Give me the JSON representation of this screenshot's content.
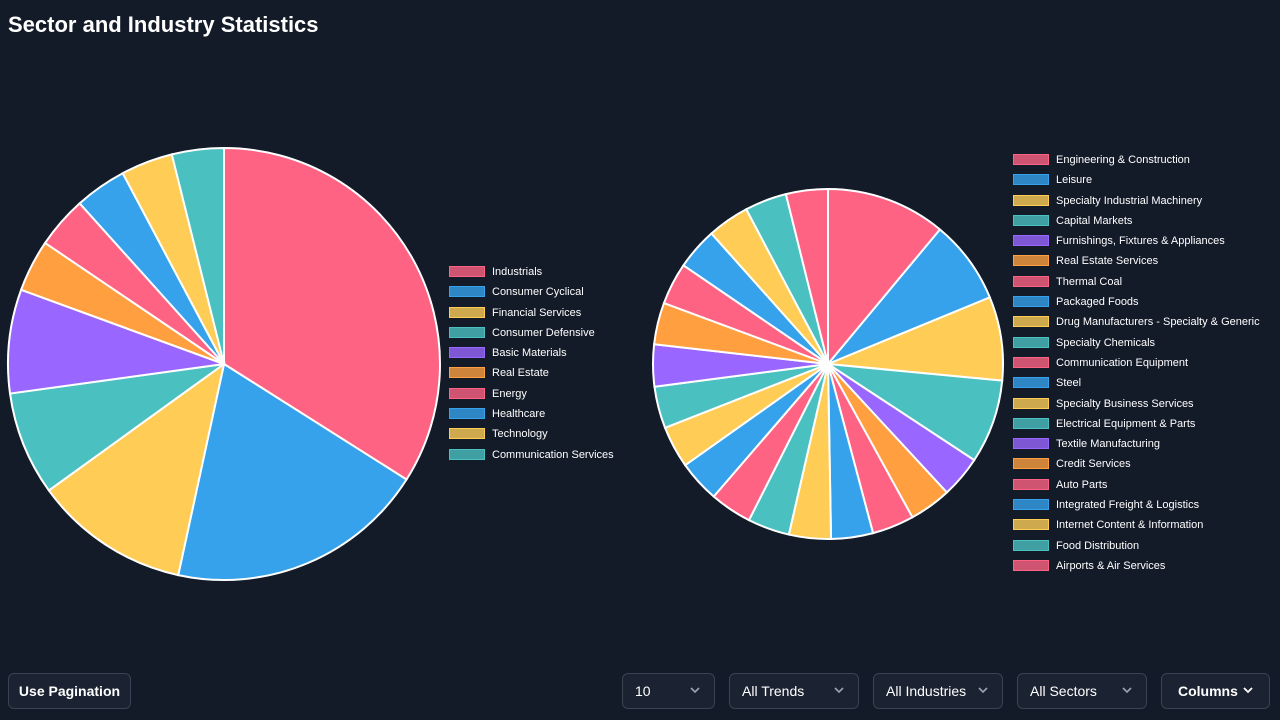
{
  "page": {
    "title": "Sector and Industry Statistics"
  },
  "sector_chart": {
    "type": "pie",
    "slices": [
      {
        "label": "Industrials",
        "value": 35,
        "color": "#ff6384"
      },
      {
        "label": "Consumer Cyclical",
        "value": 20,
        "color": "#36a2eb"
      },
      {
        "label": "Financial Services",
        "value": 12,
        "color": "#ffcd56"
      },
      {
        "label": "Consumer Defensive",
        "value": 8,
        "color": "#4bc0c0"
      },
      {
        "label": "Basic Materials",
        "value": 8,
        "color": "#9966ff"
      },
      {
        "label": "Real Estate",
        "value": 4,
        "color": "#ff9f40"
      },
      {
        "label": "Energy",
        "value": 4,
        "color": "#ff6384"
      },
      {
        "label": "Healthcare",
        "value": 4,
        "color": "#36a2eb"
      },
      {
        "label": "Technology",
        "value": 4,
        "color": "#ffcd56"
      },
      {
        "label": "Communication Services",
        "value": 4,
        "color": "#4bc0c0"
      }
    ]
  },
  "industry_chart": {
    "type": "pie",
    "slices": [
      {
        "label": "Engineering & Construction",
        "value": 10,
        "color": "#ff6384"
      },
      {
        "label": "Leisure",
        "value": 7,
        "color": "#36a2eb"
      },
      {
        "label": "Specialty Industrial Machinery",
        "value": 7,
        "color": "#ffcd56"
      },
      {
        "label": "Capital Markets",
        "value": 7,
        "color": "#4bc0c0"
      },
      {
        "label": "Furnishings, Fixtures & Appliances",
        "value": 3.5,
        "color": "#9966ff"
      },
      {
        "label": "Real Estate Services",
        "value": 3.5,
        "color": "#ff9f40"
      },
      {
        "label": "Thermal Coal",
        "value": 3.5,
        "color": "#ff6384"
      },
      {
        "label": "Packaged Foods",
        "value": 3.5,
        "color": "#36a2eb"
      },
      {
        "label": "Drug Manufacturers - Specialty & Generic",
        "value": 3.5,
        "color": "#ffcd56"
      },
      {
        "label": "Specialty Chemicals",
        "value": 3.5,
        "color": "#4bc0c0"
      },
      {
        "label": "Communication Equipment",
        "value": 3.5,
        "color": "#ff6384"
      },
      {
        "label": "Steel",
        "value": 3.5,
        "color": "#36a2eb"
      },
      {
        "label": "Specialty Business Services",
        "value": 3.5,
        "color": "#ffcd56"
      },
      {
        "label": "Electrical Equipment & Parts",
        "value": 3.5,
        "color": "#4bc0c0"
      },
      {
        "label": "Textile Manufacturing",
        "value": 3.5,
        "color": "#9966ff"
      },
      {
        "label": "Credit Services",
        "value": 3.5,
        "color": "#ff9f40"
      },
      {
        "label": "Auto Parts",
        "value": 3.5,
        "color": "#ff6384"
      },
      {
        "label": "Integrated Freight & Logistics",
        "value": 3.5,
        "color": "#36a2eb"
      },
      {
        "label": "Internet Content & Information",
        "value": 3.5,
        "color": "#ffcd56"
      },
      {
        "label": "Food Distribution",
        "value": 3.5,
        "color": "#4bc0c0"
      },
      {
        "label": "Airports & Air Services",
        "value": 3.5,
        "color": "#ff6384"
      }
    ]
  },
  "toolbar": {
    "pagination_label": "Use Pagination",
    "page_size_value": "10",
    "trend_value": "All Trends",
    "industry_value": "All Industries",
    "sector_value": "All Sectors",
    "columns_label": "Columns"
  }
}
